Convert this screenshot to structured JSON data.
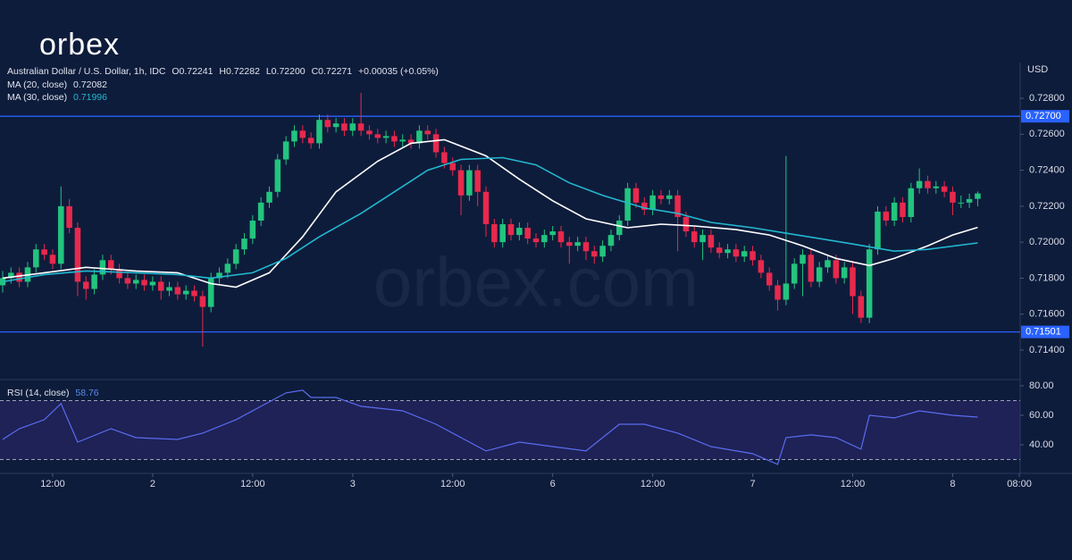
{
  "logo": "orbex",
  "watermark": "orbex.com",
  "chart_data": {
    "type": "candlestick",
    "header": {
      "symbol": "Australian Dollar / U.S. Dollar, 1h, IDC",
      "open": "O0.72241",
      "high": "H0.72282",
      "low": "L0.72200",
      "close": "C0.72271",
      "change": "+0.00035 (+0.05%)"
    },
    "y_axis_label": "USD",
    "candle_colors": {
      "up": "#22c47e",
      "down": "#e8294d"
    },
    "candles": [
      [
        0.7176,
        0.7184,
        0.7172,
        0.718
      ],
      [
        0.718,
        0.7186,
        0.7177,
        0.7183
      ],
      [
        0.7183,
        0.7186,
        0.7175,
        0.7178
      ],
      [
        0.7178,
        0.7189,
        0.7175,
        0.7186
      ],
      [
        0.7186,
        0.7199,
        0.7183,
        0.7196
      ],
      [
        0.7196,
        0.7199,
        0.719,
        0.7193
      ],
      [
        0.7193,
        0.7196,
        0.7185,
        0.7188
      ],
      [
        0.7188,
        0.7231,
        0.7185,
        0.722
      ],
      [
        0.722,
        0.7224,
        0.7205,
        0.7208
      ],
      [
        0.7208,
        0.7211,
        0.717,
        0.7178
      ],
      [
        0.7178,
        0.7181,
        0.7168,
        0.7174
      ],
      [
        0.7174,
        0.7185,
        0.7171,
        0.7182
      ],
      [
        0.7182,
        0.7193,
        0.7179,
        0.719
      ],
      [
        0.719,
        0.7193,
        0.7182,
        0.7185
      ],
      [
        0.7185,
        0.7188,
        0.7177,
        0.718
      ],
      [
        0.718,
        0.7183,
        0.7174,
        0.7177
      ],
      [
        0.7177,
        0.7182,
        0.7174,
        0.7179
      ],
      [
        0.7179,
        0.7182,
        0.7173,
        0.7176
      ],
      [
        0.7176,
        0.7181,
        0.7173,
        0.7178
      ],
      [
        0.7178,
        0.7181,
        0.7168,
        0.7173
      ],
      [
        0.7173,
        0.7178,
        0.717,
        0.7175
      ],
      [
        0.7175,
        0.7178,
        0.7168,
        0.7171
      ],
      [
        0.7171,
        0.7176,
        0.7168,
        0.7173
      ],
      [
        0.7173,
        0.7176,
        0.7167,
        0.717
      ],
      [
        0.717,
        0.7173,
        0.7142,
        0.7164
      ],
      [
        0.7164,
        0.7183,
        0.7161,
        0.718
      ],
      [
        0.718,
        0.7186,
        0.7177,
        0.7183
      ],
      [
        0.7183,
        0.7191,
        0.718,
        0.7188
      ],
      [
        0.7188,
        0.7199,
        0.7185,
        0.7196
      ],
      [
        0.7196,
        0.7205,
        0.7193,
        0.7202
      ],
      [
        0.7202,
        0.7215,
        0.7199,
        0.7212
      ],
      [
        0.7212,
        0.7225,
        0.7209,
        0.7222
      ],
      [
        0.7222,
        0.7231,
        0.7219,
        0.7228
      ],
      [
        0.7228,
        0.7249,
        0.7225,
        0.7246
      ],
      [
        0.7246,
        0.7259,
        0.7243,
        0.7256
      ],
      [
        0.7256,
        0.7265,
        0.7253,
        0.7262
      ],
      [
        0.7262,
        0.7265,
        0.7255,
        0.7258
      ],
      [
        0.7258,
        0.7261,
        0.7252,
        0.7255
      ],
      [
        0.7255,
        0.7271,
        0.7252,
        0.7268
      ],
      [
        0.7268,
        0.7271,
        0.7261,
        0.7264
      ],
      [
        0.7264,
        0.7269,
        0.7261,
        0.7266
      ],
      [
        0.7266,
        0.7269,
        0.7259,
        0.7262
      ],
      [
        0.7262,
        0.7269,
        0.7259,
        0.7266
      ],
      [
        0.7266,
        0.7283,
        0.7259,
        0.7262
      ],
      [
        0.7262,
        0.7265,
        0.7257,
        0.726
      ],
      [
        0.726,
        0.7263,
        0.7255,
        0.7258
      ],
      [
        0.7258,
        0.7262,
        0.7255,
        0.7259
      ],
      [
        0.7259,
        0.7262,
        0.7253,
        0.7256
      ],
      [
        0.7256,
        0.726,
        0.7253,
        0.7257
      ],
      [
        0.7257,
        0.726,
        0.7252,
        0.7255
      ],
      [
        0.7255,
        0.7265,
        0.7252,
        0.7262
      ],
      [
        0.7262,
        0.7265,
        0.7257,
        0.726
      ],
      [
        0.726,
        0.7263,
        0.7247,
        0.725
      ],
      [
        0.725,
        0.7253,
        0.7241,
        0.7244
      ],
      [
        0.7244,
        0.7247,
        0.7237,
        0.724
      ],
      [
        0.724,
        0.7243,
        0.7215,
        0.7226
      ],
      [
        0.7226,
        0.7243,
        0.7223,
        0.724
      ],
      [
        0.724,
        0.7243,
        0.722,
        0.7228
      ],
      [
        0.7228,
        0.7231,
        0.7203,
        0.721
      ],
      [
        0.721,
        0.7213,
        0.7197,
        0.72
      ],
      [
        0.72,
        0.7213,
        0.7197,
        0.721
      ],
      [
        0.721,
        0.7213,
        0.7201,
        0.7204
      ],
      [
        0.7204,
        0.7211,
        0.7201,
        0.7208
      ],
      [
        0.7208,
        0.7211,
        0.7199,
        0.7202
      ],
      [
        0.7202,
        0.7205,
        0.7197,
        0.72
      ],
      [
        0.72,
        0.7207,
        0.7197,
        0.7204
      ],
      [
        0.7204,
        0.7209,
        0.7201,
        0.7206
      ],
      [
        0.7206,
        0.7209,
        0.7197,
        0.72
      ],
      [
        0.72,
        0.7203,
        0.7188,
        0.7198
      ],
      [
        0.7198,
        0.7203,
        0.7195,
        0.72
      ],
      [
        0.72,
        0.7203,
        0.719,
        0.7195
      ],
      [
        0.7195,
        0.7198,
        0.7188,
        0.7192
      ],
      [
        0.7192,
        0.7201,
        0.7189,
        0.7198
      ],
      [
        0.7198,
        0.7207,
        0.7195,
        0.7204
      ],
      [
        0.7204,
        0.7215,
        0.7201,
        0.7212
      ],
      [
        0.7212,
        0.7233,
        0.7209,
        0.723
      ],
      [
        0.723,
        0.7233,
        0.7219,
        0.7222
      ],
      [
        0.7222,
        0.7225,
        0.7215,
        0.7218
      ],
      [
        0.7218,
        0.7229,
        0.7215,
        0.7226
      ],
      [
        0.7226,
        0.7229,
        0.7221,
        0.7224
      ],
      [
        0.7224,
        0.7229,
        0.7221,
        0.7226
      ],
      [
        0.7226,
        0.7229,
        0.7195,
        0.7214
      ],
      [
        0.7214,
        0.7217,
        0.7203,
        0.7206
      ],
      [
        0.7206,
        0.7209,
        0.7197,
        0.72
      ],
      [
        0.72,
        0.7207,
        0.719,
        0.7204
      ],
      [
        0.7204,
        0.7207,
        0.7194,
        0.7197
      ],
      [
        0.7197,
        0.72,
        0.7191,
        0.7194
      ],
      [
        0.7194,
        0.7199,
        0.7191,
        0.7196
      ],
      [
        0.7196,
        0.7199,
        0.7189,
        0.7192
      ],
      [
        0.7192,
        0.7198,
        0.7189,
        0.7195
      ],
      [
        0.7195,
        0.7198,
        0.7187,
        0.719
      ],
      [
        0.719,
        0.7193,
        0.718,
        0.7183
      ],
      [
        0.7183,
        0.7186,
        0.7173,
        0.7176
      ],
      [
        0.7176,
        0.7179,
        0.7162,
        0.7168
      ],
      [
        0.7168,
        0.7248,
        0.7165,
        0.7177
      ],
      [
        0.7177,
        0.7191,
        0.7174,
        0.7188
      ],
      [
        0.7188,
        0.7196,
        0.717,
        0.7193
      ],
      [
        0.7193,
        0.7196,
        0.7175,
        0.7178
      ],
      [
        0.7178,
        0.7189,
        0.7175,
        0.7186
      ],
      [
        0.7186,
        0.7193,
        0.7183,
        0.719
      ],
      [
        0.719,
        0.7193,
        0.7177,
        0.718
      ],
      [
        0.718,
        0.7189,
        0.7177,
        0.7186
      ],
      [
        0.7186,
        0.7189,
        0.716,
        0.717
      ],
      [
        0.717,
        0.7173,
        0.7155,
        0.7158
      ],
      [
        0.7158,
        0.7199,
        0.7155,
        0.7196
      ],
      [
        0.7196,
        0.722,
        0.7193,
        0.7217
      ],
      [
        0.7217,
        0.722,
        0.7209,
        0.7212
      ],
      [
        0.7212,
        0.7225,
        0.7209,
        0.7222
      ],
      [
        0.7222,
        0.7225,
        0.7211,
        0.7214
      ],
      [
        0.7214,
        0.7233,
        0.7211,
        0.723
      ],
      [
        0.723,
        0.7241,
        0.7227,
        0.7234
      ],
      [
        0.7234,
        0.7237,
        0.7227,
        0.723
      ],
      [
        0.723,
        0.7234,
        0.7227,
        0.7231
      ],
      [
        0.7231,
        0.7234,
        0.7225,
        0.7228
      ],
      [
        0.7228,
        0.7231,
        0.7215,
        0.7222
      ],
      [
        0.7222,
        0.7226,
        0.7219,
        0.7222
      ],
      [
        0.7222,
        0.7227,
        0.7219,
        0.7224
      ],
      [
        0.72241,
        0.72282,
        0.722,
        0.72271
      ]
    ],
    "series": [
      {
        "name": "MA (20, close)",
        "legend_value": "0.72082",
        "color": "#ffffff",
        "x": [
          0,
          5,
          10,
          16,
          21,
          25,
          28,
          32,
          36,
          40,
          45,
          49,
          53,
          58,
          62,
          66,
          70,
          75,
          79,
          83,
          88,
          92,
          96,
          100,
          104,
          107,
          111,
          114,
          117
        ],
        "values": [
          0.718,
          0.7183,
          0.7186,
          0.7184,
          0.7183,
          0.7177,
          0.7175,
          0.7183,
          0.7203,
          0.7228,
          0.7245,
          0.7255,
          0.7257,
          0.7248,
          0.7235,
          0.7223,
          0.7213,
          0.7208,
          0.721,
          0.7209,
          0.7207,
          0.7204,
          0.7198,
          0.7191,
          0.7187,
          0.7191,
          0.7198,
          0.7204,
          0.72082
        ]
      },
      {
        "name": "MA (30, close)",
        "legend_value": "0.71996",
        "color": "#22b8cf",
        "x": [
          0,
          5,
          10,
          16,
          21,
          25,
          30,
          34,
          38,
          43,
          47,
          51,
          55,
          60,
          64,
          68,
          72,
          77,
          81,
          85,
          90,
          94,
          98,
          102,
          107,
          111,
          117
        ],
        "values": [
          0.7178,
          0.7182,
          0.7184,
          0.7183,
          0.7182,
          0.718,
          0.7183,
          0.7191,
          0.7203,
          0.7216,
          0.7228,
          0.724,
          0.7246,
          0.7247,
          0.7243,
          0.7233,
          0.7226,
          0.7219,
          0.7216,
          0.7211,
          0.7208,
          0.7205,
          0.7202,
          0.7199,
          0.7195,
          0.7196,
          0.71996
        ]
      }
    ],
    "hlines": [
      {
        "value": 0.727,
        "label": "0.72700"
      },
      {
        "value": 0.71501,
        "label": "0.71501"
      }
    ],
    "hline_color": "#2962ff",
    "ylim": [
      0.71236,
      0.72989
    ],
    "yticks": [
      {
        "value": 0.728,
        "label": "0.72800"
      },
      {
        "value": 0.726,
        "label": "0.72600"
      },
      {
        "value": 0.724,
        "label": "0.72400"
      },
      {
        "value": 0.722,
        "label": "0.72200"
      },
      {
        "value": 0.72,
        "label": "0.72000"
      },
      {
        "value": 0.718,
        "label": "0.71800"
      },
      {
        "value": 0.716,
        "label": "0.71600"
      },
      {
        "value": 0.714,
        "label": "0.71400"
      }
    ],
    "xlim": [
      -0.32,
      122.1
    ],
    "xticks": [
      {
        "value": 6,
        "label": "12:00"
      },
      {
        "value": 18,
        "label": "2"
      },
      {
        "value": 30,
        "label": "12:00"
      },
      {
        "value": 42,
        "label": "3"
      },
      {
        "value": 54,
        "label": "12:00"
      },
      {
        "value": 66,
        "label": "6"
      },
      {
        "value": 78,
        "label": "12:00"
      },
      {
        "value": 90,
        "label": "7"
      },
      {
        "value": 102,
        "label": "12:00"
      },
      {
        "value": 114,
        "label": "8"
      },
      {
        "value": 122,
        "label": "08:00"
      }
    ],
    "rsi": {
      "name": "RSI (14, close)",
      "legend_value": "58.76",
      "color": "#5a6cf0",
      "x": [
        0,
        2,
        5,
        7,
        9,
        13,
        16,
        21,
        24,
        28,
        31,
        34,
        36,
        37,
        40,
        43,
        48,
        52,
        55,
        58,
        62,
        66,
        70,
        74,
        77,
        81,
        85,
        90,
        93,
        94,
        97,
        100,
        103,
        104,
        107,
        110,
        114,
        117
      ],
      "values": [
        43.6,
        50.9,
        57,
        67.9,
        41.8,
        50.9,
        44.8,
        43.6,
        47.9,
        57,
        66.1,
        75.2,
        77,
        72.1,
        72.1,
        66.1,
        63,
        53.9,
        44.8,
        35.8,
        41.8,
        38.8,
        35.8,
        53.9,
        53.9,
        47.9,
        38.8,
        33.9,
        26.7,
        44.8,
        46.7,
        44.8,
        37,
        60,
        58.2,
        63,
        60,
        58.76
      ],
      "ylim": [
        20.6,
        84.2
      ],
      "yticks": [
        {
          "value": 80,
          "label": "80.00"
        },
        {
          "value": 60,
          "label": "60.00"
        },
        {
          "value": 40,
          "label": "40.00"
        }
      ],
      "bands": [
        70,
        30
      ]
    }
  }
}
